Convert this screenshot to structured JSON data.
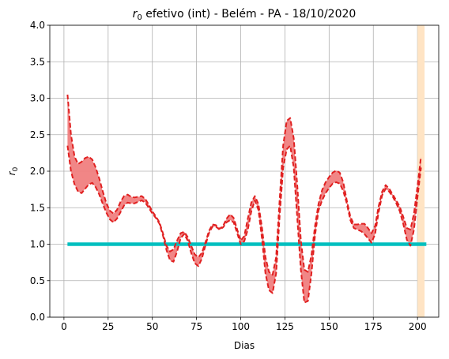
{
  "chart_data": {
    "type": "line",
    "title": {
      "symbol": "r",
      "subscript": "0",
      "rest": " efetivo (int) - Belém - PA - 18/10/2020"
    },
    "xlabel": "Dias",
    "ylabel": {
      "symbol": "r",
      "subscript": "0"
    },
    "xlim": [
      -8,
      212
    ],
    "ylim": [
      0,
      4
    ],
    "xticks": [
      0,
      25,
      50,
      75,
      100,
      125,
      150,
      175,
      200
    ],
    "yticks": [
      0.0,
      0.5,
      1.0,
      1.5,
      2.0,
      2.5,
      3.0,
      3.5,
      4.0
    ],
    "ytick_labels": [
      "0.0",
      "0.5",
      "1.0",
      "1.5",
      "2.0",
      "2.5",
      "3.0",
      "3.5",
      "4.0"
    ],
    "grid": true,
    "reference_line": {
      "y": 1.0,
      "x_start": 2,
      "x_end": 205,
      "color": "#00bfbf"
    },
    "highlight_band": {
      "x_start": 200,
      "x_end": 204,
      "color": "#ffe4c4"
    },
    "band_color": "#f08080",
    "line_color": "#e02020",
    "series": [
      {
        "x": [
          2,
          4,
          6,
          8,
          10,
          12,
          14,
          16,
          18,
          20,
          22,
          24,
          26,
          28,
          30,
          32,
          34,
          36,
          38,
          40,
          42,
          44,
          46,
          48,
          50,
          52,
          54,
          56,
          58,
          60,
          62,
          64,
          66,
          68,
          70,
          72,
          74,
          76,
          78,
          80,
          82,
          84,
          86,
          88,
          90,
          92,
          94,
          96,
          98,
          100,
          102,
          104,
          106,
          108,
          110,
          112,
          114,
          116,
          118,
          120,
          122,
          124,
          126,
          128,
          130,
          132,
          134,
          136,
          138,
          140,
          142,
          144,
          146,
          148,
          150,
          152,
          154,
          156,
          158,
          160,
          162,
          164,
          166,
          168,
          170,
          172,
          174,
          176,
          178,
          180,
          182,
          184,
          186,
          188,
          190,
          192,
          194,
          196,
          198,
          200,
          202
        ],
        "upper": [
          3.05,
          2.5,
          2.2,
          2.1,
          2.13,
          2.18,
          2.2,
          2.16,
          2.05,
          1.9,
          1.72,
          1.56,
          1.46,
          1.42,
          1.47,
          1.58,
          1.66,
          1.68,
          1.65,
          1.64,
          1.65,
          1.66,
          1.62,
          1.54,
          1.45,
          1.38,
          1.3,
          1.15,
          0.98,
          0.9,
          0.93,
          1.05,
          1.15,
          1.17,
          1.1,
          0.98,
          0.86,
          0.82,
          0.88,
          1.02,
          1.18,
          1.27,
          1.26,
          1.21,
          1.25,
          1.35,
          1.41,
          1.36,
          1.2,
          1.05,
          1.11,
          1.35,
          1.57,
          1.66,
          1.55,
          1.23,
          0.82,
          0.62,
          0.58,
          0.82,
          1.6,
          2.35,
          2.69,
          2.73,
          2.45,
          1.8,
          1.05,
          0.65,
          0.62,
          0.85,
          1.25,
          1.55,
          1.74,
          1.85,
          1.92,
          1.98,
          2.01,
          1.98,
          1.85,
          1.6,
          1.38,
          1.27,
          1.27,
          1.28,
          1.28,
          1.22,
          1.15,
          1.25,
          1.52,
          1.72,
          1.81,
          1.76,
          1.68,
          1.6,
          1.51,
          1.37,
          1.22,
          1.2,
          1.42,
          1.8,
          2.2
        ]
      },
      {
        "x": [
          2,
          4,
          6,
          8,
          10,
          12,
          14,
          16,
          18,
          20,
          22,
          24,
          26,
          28,
          30,
          32,
          34,
          36,
          38,
          40,
          42,
          44,
          46,
          48,
          50,
          52,
          54,
          56,
          58,
          60,
          62,
          64,
          66,
          68,
          70,
          72,
          74,
          76,
          78,
          80,
          82,
          84,
          86,
          88,
          90,
          92,
          94,
          96,
          98,
          100,
          102,
          104,
          106,
          108,
          110,
          112,
          114,
          116,
          118,
          120,
          122,
          124,
          126,
          128,
          130,
          132,
          134,
          136,
          138,
          140,
          142,
          144,
          146,
          148,
          150,
          152,
          154,
          156,
          158,
          160,
          162,
          164,
          166,
          168,
          170,
          172,
          174,
          176,
          178,
          180,
          182,
          184,
          186,
          188,
          190,
          192,
          194,
          196,
          198,
          200,
          202
        ],
        "lower": [
          2.35,
          2.0,
          1.82,
          1.72,
          1.7,
          1.76,
          1.82,
          1.84,
          1.78,
          1.68,
          1.55,
          1.43,
          1.34,
          1.3,
          1.35,
          1.44,
          1.53,
          1.57,
          1.56,
          1.56,
          1.58,
          1.6,
          1.57,
          1.5,
          1.42,
          1.36,
          1.28,
          1.12,
          0.92,
          0.78,
          0.76,
          0.9,
          1.08,
          1.14,
          1.05,
          0.88,
          0.74,
          0.7,
          0.8,
          0.98,
          1.15,
          1.24,
          1.24,
          1.2,
          1.23,
          1.3,
          1.33,
          1.3,
          1.15,
          1.0,
          1.04,
          1.2,
          1.45,
          1.6,
          1.47,
          1.08,
          0.6,
          0.37,
          0.33,
          0.6,
          1.38,
          2.05,
          2.3,
          2.35,
          2.05,
          1.35,
          0.65,
          0.2,
          0.22,
          0.6,
          1.12,
          1.46,
          1.6,
          1.7,
          1.77,
          1.83,
          1.85,
          1.83,
          1.73,
          1.56,
          1.33,
          1.22,
          1.2,
          1.18,
          1.14,
          1.08,
          1.02,
          1.14,
          1.44,
          1.67,
          1.76,
          1.72,
          1.65,
          1.56,
          1.45,
          1.27,
          1.06,
          0.98,
          1.2,
          1.65,
          2.05
        ]
      }
    ]
  }
}
